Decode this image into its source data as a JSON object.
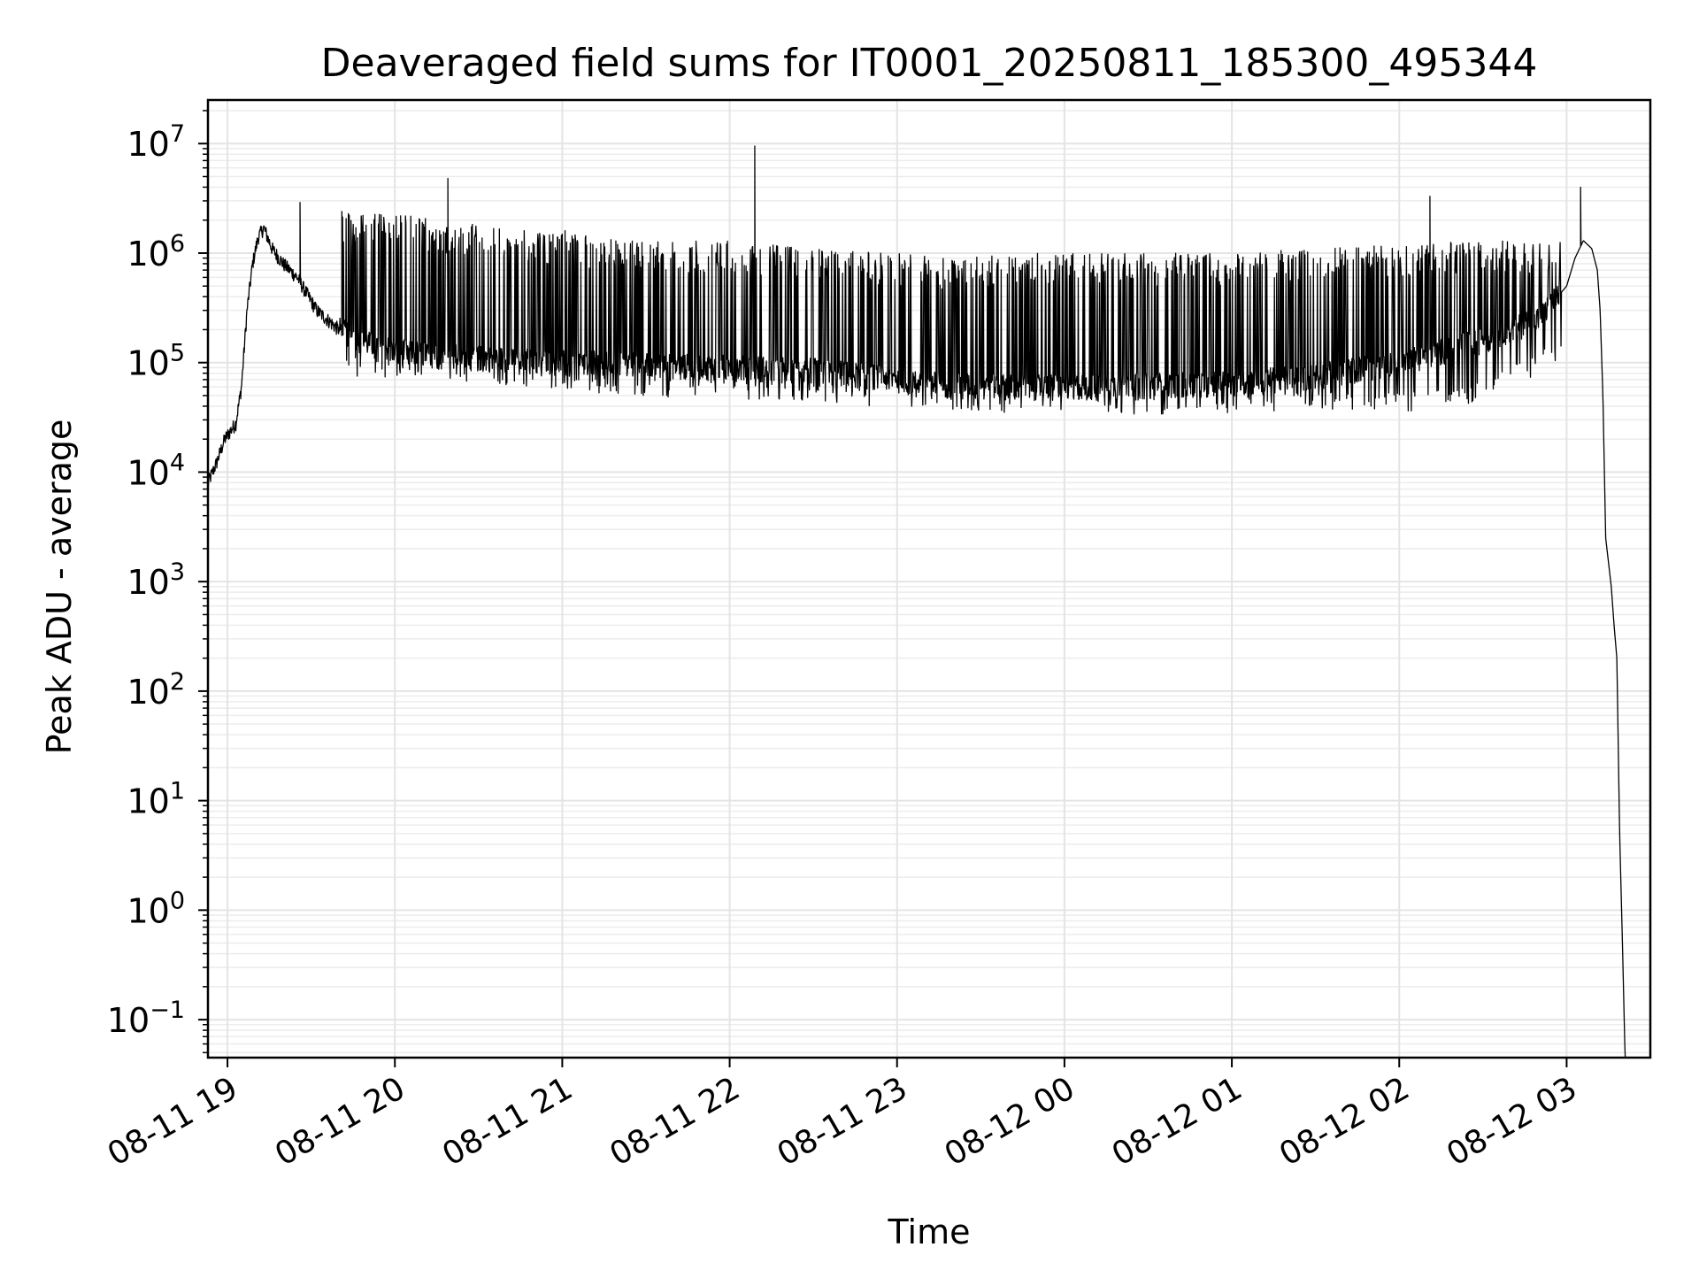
{
  "chart_data": {
    "type": "line",
    "title": "Deaveraged field sums for IT0001_20250811_185300_495344",
    "xlabel": "Time",
    "ylabel": "Peak ADU - average",
    "yscale": "log",
    "ylim": [
      0.045,
      25000000
    ],
    "xlim": [
      "2025-08-11 18:53",
      "2025-08-12 03:30"
    ],
    "grid": true,
    "grid_minor": true,
    "line_color": "#000000",
    "x_ticks": [
      {
        "label": "08-11 19",
        "value": "2025-08-11 19:00"
      },
      {
        "label": "08-11 20",
        "value": "2025-08-11 20:00"
      },
      {
        "label": "08-11 21",
        "value": "2025-08-11 21:00"
      },
      {
        "label": "08-11 22",
        "value": "2025-08-11 22:00"
      },
      {
        "label": "08-11 23",
        "value": "2025-08-11 23:00"
      },
      {
        "label": "08-12 00",
        "value": "2025-08-12 00:00"
      },
      {
        "label": "08-12 01",
        "value": "2025-08-12 01:00"
      },
      {
        "label": "08-12 02",
        "value": "2025-08-12 02:00"
      },
      {
        "label": "08-12 03",
        "value": "2025-08-12 03:00"
      }
    ],
    "y_ticks": [
      {
        "base": "10",
        "exp": "−1",
        "value": 0.1
      },
      {
        "base": "10",
        "exp": "0",
        "value": 1
      },
      {
        "base": "10",
        "exp": "1",
        "value": 10
      },
      {
        "base": "10",
        "exp": "2",
        "value": 100
      },
      {
        "base": "10",
        "exp": "3",
        "value": 1000
      },
      {
        "base": "10",
        "exp": "4",
        "value": 10000
      },
      {
        "base": "10",
        "exp": "5",
        "value": 100000
      },
      {
        "base": "10",
        "exp": "6",
        "value": 1000000
      },
      {
        "base": "10",
        "exp": "7",
        "value": 10000000
      }
    ],
    "series": [
      {
        "baseline": {
          "x": [
            "2025-08-11 18:53",
            "2025-08-11 18:56",
            "2025-08-11 18:59",
            "2025-08-11 19:03",
            "2025-08-11 19:05",
            "2025-08-11 19:07",
            "2025-08-11 19:09",
            "2025-08-11 19:11",
            "2025-08-11 19:13",
            "2025-08-11 19:16",
            "2025-08-11 19:20",
            "2025-08-11 19:25",
            "2025-08-11 19:32",
            "2025-08-11 19:40",
            "2025-08-11 19:50",
            "2025-08-11 20:00",
            "2025-08-11 20:15",
            "2025-08-11 20:30",
            "2025-08-11 21:00",
            "2025-08-11 21:30",
            "2025-08-11 22:00",
            "2025-08-11 22:30",
            "2025-08-11 22:50",
            "2025-08-11 23:00",
            "2025-08-11 23:20",
            "2025-08-11 23:40",
            "2025-08-12 00:00",
            "2025-08-12 00:30",
            "2025-08-12 01:00",
            "2025-08-12 01:30",
            "2025-08-12 02:00",
            "2025-08-12 02:30",
            "2025-08-12 02:50",
            "2025-08-12 03:00",
            "2025-08-12 03:03",
            "2025-08-12 03:06",
            "2025-08-12 03:09",
            "2025-08-12 03:11",
            "2025-08-12 03:12",
            "2025-08-12 03:13",
            "2025-08-12 03:14",
            "2025-08-12 03:15",
            "2025-08-12 03:16",
            "2025-08-12 03:17",
            "2025-08-12 03:18",
            "2025-08-12 03:19",
            "2025-08-12 03:20",
            "2025-08-12 03:21"
          ],
          "y": [
            8000,
            12000,
            20000,
            28000,
            60000,
            300000,
            800000,
            1400000,
            1700000,
            1100000,
            800000,
            600000,
            300000,
            200000,
            150000,
            130000,
            115000,
            110000,
            100000,
            95000,
            90000,
            85000,
            75000,
            70000,
            62000,
            60000,
            60000,
            62000,
            65000,
            75000,
            100000,
            160000,
            250000,
            500000,
            900000,
            1300000,
            1100000,
            700000,
            300000,
            50000,
            2500,
            1500,
            900,
            400,
            200,
            5,
            0.5,
            0.04
          ]
        },
        "spikes": {
          "x": [
            "2025-08-11 19:26",
            "2025-08-11 19:41",
            "2025-08-11 20:19",
            "2025-08-11 21:01",
            "2025-08-11 22:09",
            "2025-08-12 02:11",
            "2025-08-12 03:05"
          ],
          "y": [
            2900000,
            2400000,
            4800000,
            1600000,
            9500000,
            3300000,
            4000000
          ]
        },
        "band": {
          "x": [
            "2025-08-11 19:40",
            "2025-08-11 20:00",
            "2025-08-11 20:30",
            "2025-08-11 21:00",
            "2025-08-11 21:30",
            "2025-08-11 22:00",
            "2025-08-11 22:30",
            "2025-08-11 23:00",
            "2025-08-11 23:20",
            "2025-08-11 23:40",
            "2025-08-12 00:00",
            "2025-08-12 00:30",
            "2025-08-12 01:00",
            "2025-08-12 01:30",
            "2025-08-12 02:00",
            "2025-08-12 02:30",
            "2025-08-12 02:58"
          ],
          "low": [
            110000,
            100000,
            95000,
            80000,
            70000,
            65000,
            60000,
            55000,
            52000,
            50000,
            50000,
            48000,
            50000,
            52000,
            50000,
            60000,
            150000
          ],
          "high": [
            2300000,
            2300000,
            1800000,
            1500000,
            1300000,
            1300000,
            1100000,
            1000000,
            900000,
            1000000,
            1000000,
            1000000,
            1000000,
            1100000,
            1200000,
            1300000,
            1300000
          ]
        }
      }
    ]
  }
}
